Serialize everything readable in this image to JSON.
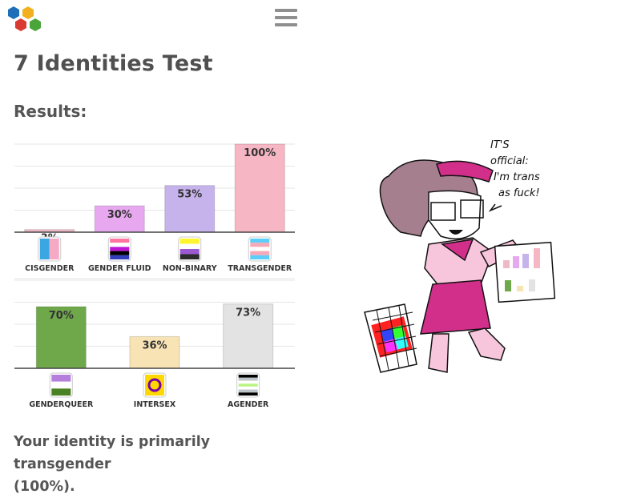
{
  "header": {
    "logo_icon": "hexagon-cluster-logo",
    "menu_icon": "hamburger-menu-icon"
  },
  "page": {
    "title": "7 Identities Test",
    "results_heading": "Results:",
    "summary_line1": "Your identity is primarily transgender",
    "summary_line2": "(100%)."
  },
  "chart_data": [
    {
      "type": "bar",
      "categories": [
        "CISGENDER",
        "GENDER FLUID",
        "NON-BINARY",
        "TRANSGENDER"
      ],
      "values": [
        3,
        30,
        53,
        100
      ],
      "value_labels": [
        "3%",
        "30%",
        "53%",
        "100%"
      ],
      "ylim": [
        0,
        100
      ],
      "colors": [
        "#f2b8c6",
        "#e7a8f0",
        "#c7b3ec",
        "#f7b6c4"
      ],
      "icons": [
        "cisgender-flag-icon",
        "genderfluid-flag-icon",
        "nonbinary-flag-icon",
        "transgender-flag-icon"
      ],
      "grid": true
    },
    {
      "type": "bar",
      "categories": [
        "GENDERQUEER",
        "INTERSEX",
        "AGENDER"
      ],
      "values": [
        70,
        36,
        73
      ],
      "value_labels": [
        "70%",
        "36%",
        "73%"
      ],
      "ylim": [
        0,
        100
      ],
      "colors": [
        "#6fa84a",
        "#f8e3b5",
        "#e3e3e3"
      ],
      "icons": [
        "genderqueer-flag-icon",
        "intersex-flag-icon",
        "agender-flag-icon"
      ],
      "grid": true
    }
  ],
  "illustration": {
    "speech": [
      "IT'S",
      "official:",
      "I'm trans",
      "as fuck!"
    ]
  }
}
